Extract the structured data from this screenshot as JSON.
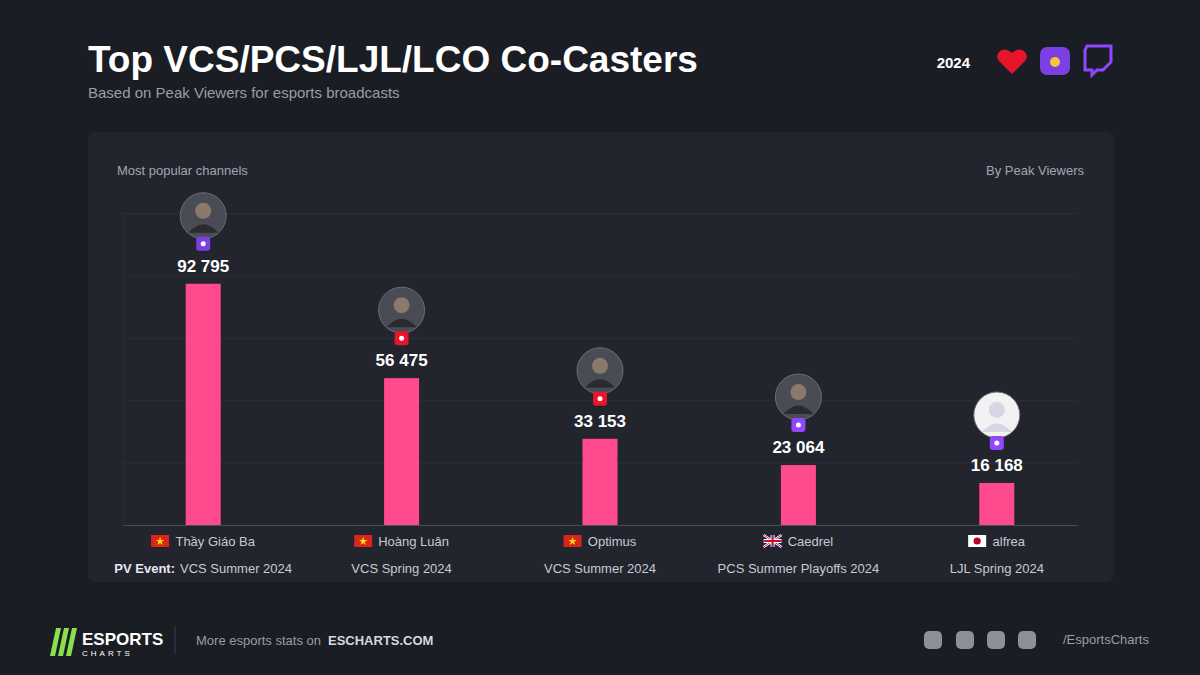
{
  "chart_data": {
    "type": "bar",
    "title": "Top VCS/PCS/LJL/LCO Co-Casters",
    "subtitle": "Based on Peak Viewers for esports broadcasts",
    "categories": [
      "Thầy Giáo Ba",
      "Hoàng Luân",
      "Optimus",
      "Caedrel",
      "alfrea"
    ],
    "values": [
      92795,
      56475,
      33153,
      23064,
      16168
    ],
    "value_labels": [
      "92 795",
      "56 475",
      "33 153",
      "23 064",
      "16 168"
    ],
    "events": [
      "VCS Summer 2024",
      "VCS Spring 2024",
      "VCS Summer 2024",
      "PCS Summer Playoffs 2024",
      "LJL Spring 2024"
    ],
    "event_label": "PV Event:",
    "color": "#ff4a8d",
    "ylim": [
      0,
      120000
    ],
    "yticks": [
      0,
      24000,
      48000,
      72000,
      96000,
      120000
    ],
    "grid": true,
    "data_labels": true,
    "tick_labels": "x"
  },
  "header": {
    "year": "2024"
  },
  "panel": {
    "heading": "Most popular channels",
    "sort_note": "By Peak Viewers"
  },
  "footer": {
    "logo_top": "ESPORTS",
    "logo_bottom": "CHARTS",
    "text": "More esports stats on",
    "link": "ESCHARTS.COM",
    "handle": "/EsportsCharts"
  }
}
